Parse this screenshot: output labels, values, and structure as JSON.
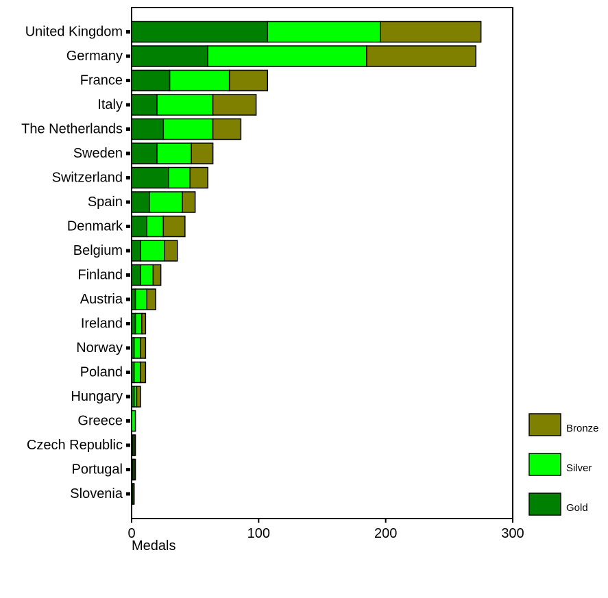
{
  "chart_data": {
    "type": "bar",
    "orientation": "horizontal",
    "stacked": true,
    "categories": [
      "United Kingdom",
      "Germany",
      "France",
      "Italy",
      "The Netherlands",
      "Sweden",
      "Switzerland",
      "Spain",
      "Denmark",
      "Belgium",
      "Finland",
      "Austria",
      "Ireland",
      "Norway",
      "Poland",
      "Hungary",
      "Greece",
      "Czech Republic",
      "Portugal",
      "Slovenia"
    ],
    "series": [
      {
        "name": "Gold",
        "color": "#008000",
        "values": [
          107,
          60,
          30,
          20,
          25,
          20,
          29,
          14,
          12,
          7,
          7,
          3,
          3,
          2,
          2,
          2,
          0,
          1,
          1,
          0
        ]
      },
      {
        "name": "Silver",
        "color": "#00ff00",
        "values": [
          89,
          125,
          47,
          44,
          39,
          27,
          17,
          26,
          13,
          19,
          10,
          9,
          5,
          5,
          5,
          2,
          3,
          1,
          1,
          1
        ]
      },
      {
        "name": "Bronze",
        "color": "#808000",
        "values": [
          79,
          86,
          30,
          34,
          22,
          17,
          14,
          10,
          17,
          10,
          6,
          7,
          3,
          4,
          4,
          3,
          0,
          1,
          1,
          1
        ]
      }
    ],
    "xlabel": "Medals",
    "xlim": [
      0,
      300
    ],
    "xticks": [
      "0",
      "100",
      "200",
      "300"
    ],
    "grid": false,
    "legend_placement": "right",
    "legend_order": [
      "Bronze",
      "Silver",
      "Gold"
    ]
  }
}
